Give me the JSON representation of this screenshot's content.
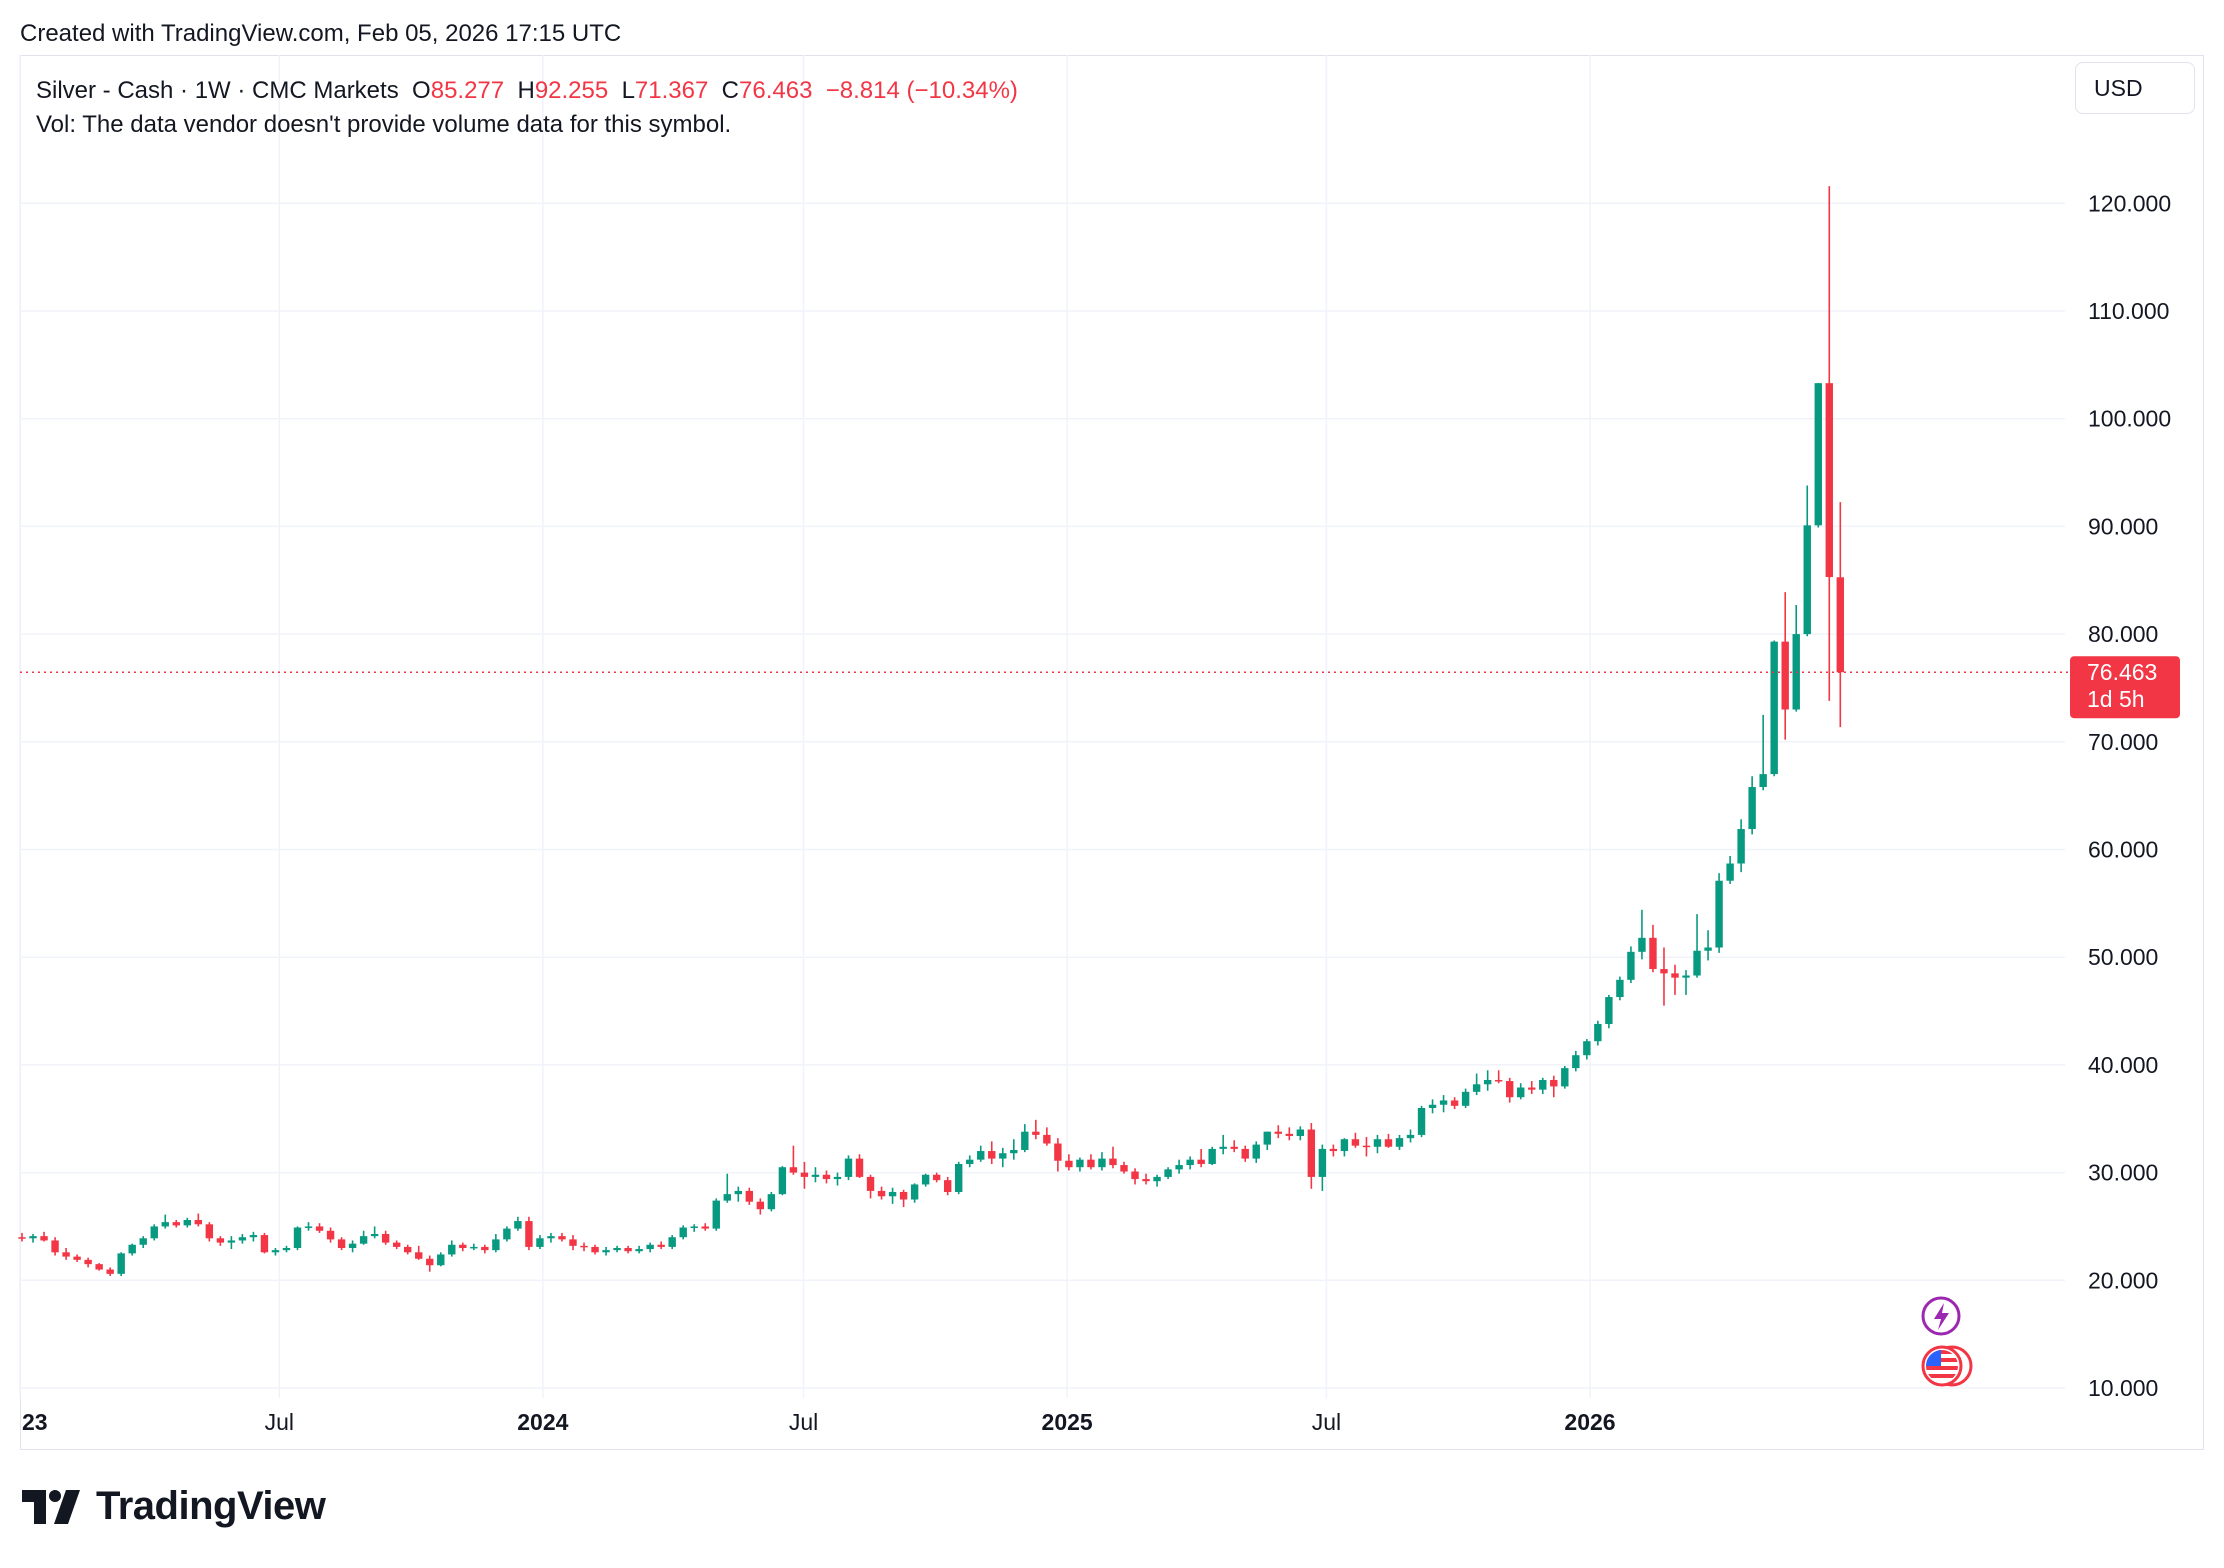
{
  "header": {
    "created_text": "Created with TradingView.com, Feb 05, 2026 17:15 UTC"
  },
  "legend": {
    "symbol": "Silver - Cash · 1W · CMC Markets",
    "open_label": "O",
    "open_value": "85.277",
    "high_label": "H",
    "high_value": "92.255",
    "low_label": "L",
    "low_value": "71.367",
    "close_label": "C",
    "close_value": "76.463",
    "change": "−8.814 (−10.34%)",
    "volume_note": "Vol: The data vendor doesn't provide volume data for this symbol."
  },
  "currency_button": "USD",
  "price_tag": {
    "price": "76.463",
    "countdown": "1d 5h"
  },
  "brand": {
    "name": "TradingView"
  },
  "icons": [
    "lightning-event-icon",
    "us-flag-event-icon"
  ],
  "colors": {
    "up": "#089981",
    "down": "#f23645",
    "grid": "#f0f3fa",
    "text": "#131722"
  },
  "chart_data": {
    "type": "candlestick",
    "interval": "1W",
    "y_ticks": [
      "10.000",
      "20.000",
      "30.000",
      "40.000",
      "50.000",
      "60.000",
      "70.000",
      "80.000",
      "90.000",
      "100.000",
      "110.000",
      "120.000"
    ],
    "ylim": [
      10,
      123
    ],
    "x_ticks": [
      {
        "label": "23",
        "date": "2023-01-01",
        "bold": true
      },
      {
        "label": "Jul",
        "date": "2023-07-01",
        "bold": false
      },
      {
        "label": "2024",
        "date": "2024-01-01",
        "bold": true
      },
      {
        "label": "Jul",
        "date": "2024-07-01",
        "bold": false
      },
      {
        "label": "2025",
        "date": "2025-01-01",
        "bold": true
      },
      {
        "label": "Jul",
        "date": "2025-07-01",
        "bold": false
      },
      {
        "label": "2026",
        "date": "2026-01-01",
        "bold": true
      }
    ],
    "last_price": 76.463,
    "candles": [
      [
        24.0,
        24.4,
        23.6,
        23.9
      ],
      [
        23.9,
        24.3,
        23.5,
        24.1
      ],
      [
        24.1,
        24.5,
        23.6,
        23.7
      ],
      [
        23.7,
        24.0,
        22.3,
        22.6
      ],
      [
        22.6,
        23.0,
        21.9,
        22.2
      ],
      [
        22.2,
        22.4,
        21.7,
        21.9
      ],
      [
        21.9,
        22.1,
        21.2,
        21.5
      ],
      [
        21.5,
        21.6,
        20.9,
        21.0
      ],
      [
        21.0,
        21.2,
        20.4,
        20.6
      ],
      [
        20.6,
        22.6,
        20.4,
        22.5
      ],
      [
        22.5,
        23.4,
        22.3,
        23.3
      ],
      [
        23.3,
        24.1,
        23.0,
        23.9
      ],
      [
        23.9,
        25.2,
        23.7,
        25.0
      ],
      [
        25.0,
        26.1,
        24.8,
        25.4
      ],
      [
        25.4,
        25.6,
        24.9,
        25.1
      ],
      [
        25.1,
        25.8,
        24.9,
        25.6
      ],
      [
        25.6,
        26.2,
        25.0,
        25.2
      ],
      [
        25.2,
        25.4,
        23.6,
        23.9
      ],
      [
        23.9,
        24.1,
        23.2,
        23.5
      ],
      [
        23.5,
        24.1,
        22.9,
        23.7
      ],
      [
        23.7,
        24.3,
        23.4,
        24.0
      ],
      [
        24.0,
        24.5,
        23.6,
        24.2
      ],
      [
        24.2,
        24.4,
        22.5,
        22.6
      ],
      [
        22.6,
        23.0,
        22.3,
        22.8
      ],
      [
        22.8,
        23.2,
        22.6,
        23.0
      ],
      [
        23.0,
        25.0,
        22.8,
        24.9
      ],
      [
        24.9,
        25.4,
        24.6,
        25.0
      ],
      [
        25.0,
        25.3,
        24.4,
        24.6
      ],
      [
        24.6,
        24.9,
        23.5,
        23.8
      ],
      [
        23.8,
        24.0,
        22.8,
        23.0
      ],
      [
        23.0,
        23.7,
        22.6,
        23.4
      ],
      [
        23.4,
        24.6,
        23.3,
        24.1
      ],
      [
        24.1,
        25.0,
        23.9,
        24.3
      ],
      [
        24.3,
        24.6,
        23.3,
        23.5
      ],
      [
        23.5,
        23.7,
        22.9,
        23.1
      ],
      [
        23.1,
        23.3,
        22.4,
        22.6
      ],
      [
        22.6,
        23.2,
        21.9,
        22.0
      ],
      [
        22.0,
        22.3,
        20.8,
        21.4
      ],
      [
        21.4,
        22.6,
        21.3,
        22.4
      ],
      [
        22.4,
        23.7,
        22.2,
        23.3
      ],
      [
        23.3,
        23.5,
        22.7,
        23.0
      ],
      [
        23.0,
        23.4,
        22.8,
        23.1
      ],
      [
        23.1,
        23.3,
        22.5,
        22.8
      ],
      [
        22.8,
        24.3,
        22.6,
        23.8
      ],
      [
        23.8,
        25.0,
        23.6,
        24.8
      ],
      [
        24.8,
        25.9,
        24.6,
        25.5
      ],
      [
        25.5,
        25.9,
        22.8,
        23.1
      ],
      [
        23.1,
        24.2,
        22.9,
        23.9
      ],
      [
        23.9,
        24.4,
        23.5,
        24.1
      ],
      [
        24.1,
        24.4,
        23.6,
        23.8
      ],
      [
        23.8,
        24.2,
        22.8,
        23.2
      ],
      [
        23.2,
        23.5,
        22.7,
        23.1
      ],
      [
        23.1,
        23.3,
        22.4,
        22.6
      ],
      [
        22.6,
        23.1,
        22.3,
        22.8
      ],
      [
        22.8,
        23.2,
        22.6,
        23.0
      ],
      [
        23.0,
        23.2,
        22.5,
        22.7
      ],
      [
        22.7,
        23.2,
        22.5,
        22.9
      ],
      [
        22.9,
        23.5,
        22.6,
        23.3
      ],
      [
        23.3,
        23.6,
        22.9,
        23.1
      ],
      [
        23.1,
        24.2,
        22.9,
        24.0
      ],
      [
        24.0,
        25.1,
        23.8,
        24.9
      ],
      [
        24.9,
        25.2,
        24.5,
        25.0
      ],
      [
        25.0,
        25.3,
        24.6,
        24.8
      ],
      [
        24.8,
        27.6,
        24.6,
        27.4
      ],
      [
        27.4,
        29.9,
        27.2,
        28.0
      ],
      [
        28.0,
        28.7,
        27.3,
        28.3
      ],
      [
        28.3,
        28.6,
        27.0,
        27.3
      ],
      [
        27.3,
        27.6,
        26.1,
        26.6
      ],
      [
        26.6,
        28.2,
        26.4,
        28.0
      ],
      [
        28.0,
        30.6,
        27.9,
        30.5
      ],
      [
        30.5,
        32.5,
        29.8,
        30.0
      ],
      [
        30.0,
        31.0,
        28.5,
        29.6
      ],
      [
        29.6,
        30.5,
        29.1,
        29.8
      ],
      [
        29.8,
        30.2,
        29.0,
        29.4
      ],
      [
        29.4,
        30.0,
        28.8,
        29.6
      ],
      [
        29.6,
        31.6,
        29.3,
        31.3
      ],
      [
        31.3,
        31.7,
        29.5,
        29.6
      ],
      [
        29.6,
        29.8,
        27.6,
        28.3
      ],
      [
        28.3,
        28.7,
        27.5,
        27.8
      ],
      [
        27.8,
        28.6,
        27.1,
        28.2
      ],
      [
        28.2,
        28.4,
        26.8,
        27.5
      ],
      [
        27.5,
        29.0,
        27.2,
        28.9
      ],
      [
        28.9,
        29.9,
        28.7,
        29.8
      ],
      [
        29.8,
        30.0,
        29.1,
        29.3
      ],
      [
        29.3,
        29.6,
        27.9,
        28.2
      ],
      [
        28.2,
        31.0,
        28.0,
        30.8
      ],
      [
        30.8,
        31.6,
        30.5,
        31.2
      ],
      [
        31.2,
        32.5,
        31.0,
        32.0
      ],
      [
        32.0,
        32.9,
        30.8,
        31.3
      ],
      [
        31.3,
        32.3,
        30.5,
        31.8
      ],
      [
        31.8,
        33.1,
        31.2,
        32.1
      ],
      [
        32.1,
        34.5,
        31.9,
        33.8
      ],
      [
        33.8,
        34.9,
        33.1,
        33.5
      ],
      [
        33.5,
        34.2,
        32.5,
        32.7
      ],
      [
        32.7,
        33.2,
        30.1,
        31.1
      ],
      [
        31.1,
        31.7,
        30.2,
        30.5
      ],
      [
        30.5,
        31.4,
        30.1,
        31.2
      ],
      [
        31.2,
        31.7,
        30.3,
        30.5
      ],
      [
        30.5,
        31.9,
        30.2,
        31.3
      ],
      [
        31.3,
        32.4,
        30.4,
        30.7
      ],
      [
        30.7,
        31.0,
        29.9,
        30.1
      ],
      [
        30.1,
        30.4,
        28.9,
        29.4
      ],
      [
        29.4,
        29.9,
        28.9,
        29.2
      ],
      [
        29.2,
        29.8,
        28.7,
        29.6
      ],
      [
        29.6,
        30.5,
        29.4,
        30.3
      ],
      [
        30.3,
        31.2,
        29.9,
        30.7
      ],
      [
        30.7,
        31.5,
        30.3,
        31.2
      ],
      [
        31.2,
        32.2,
        30.5,
        30.8
      ],
      [
        30.8,
        32.4,
        30.7,
        32.2
      ],
      [
        32.2,
        33.5,
        31.7,
        32.4
      ],
      [
        32.4,
        33.0,
        31.9,
        32.2
      ],
      [
        32.2,
        32.5,
        31.0,
        31.3
      ],
      [
        31.3,
        32.9,
        30.9,
        32.6
      ],
      [
        32.6,
        33.8,
        32.1,
        33.8
      ],
      [
        33.8,
        34.4,
        33.2,
        33.6
      ],
      [
        33.6,
        34.2,
        33.0,
        33.4
      ],
      [
        33.4,
        34.3,
        33.0,
        34.0
      ],
      [
        34.0,
        34.6,
        28.5,
        29.6
      ],
      [
        29.6,
        32.6,
        28.3,
        32.2
      ],
      [
        32.2,
        32.6,
        31.5,
        32.0
      ],
      [
        32.0,
        33.2,
        31.5,
        33.1
      ],
      [
        33.1,
        33.7,
        32.3,
        32.5
      ],
      [
        32.5,
        33.3,
        31.5,
        32.4
      ],
      [
        32.4,
        33.5,
        31.8,
        33.1
      ],
      [
        33.1,
        33.6,
        32.3,
        32.4
      ],
      [
        32.4,
        33.5,
        32.1,
        33.2
      ],
      [
        33.2,
        34.0,
        32.8,
        33.5
      ],
      [
        33.5,
        36.2,
        33.3,
        36.0
      ],
      [
        36.0,
        36.8,
        35.5,
        36.3
      ],
      [
        36.3,
        37.2,
        35.6,
        36.7
      ],
      [
        36.7,
        37.0,
        35.9,
        36.2
      ],
      [
        36.2,
        37.8,
        36.0,
        37.5
      ],
      [
        37.5,
        39.2,
        37.2,
        38.2
      ],
      [
        38.2,
        39.5,
        37.6,
        38.6
      ],
      [
        38.6,
        39.5,
        38.3,
        38.5
      ],
      [
        38.5,
        38.8,
        36.5,
        37.0
      ],
      [
        37.0,
        38.3,
        36.8,
        37.9
      ],
      [
        37.9,
        38.5,
        37.3,
        37.7
      ],
      [
        37.7,
        38.8,
        37.3,
        38.6
      ],
      [
        38.6,
        39.0,
        37.0,
        38.0
      ],
      [
        38.0,
        39.9,
        37.8,
        39.7
      ],
      [
        39.7,
        41.3,
        39.4,
        40.9
      ],
      [
        40.9,
        42.4,
        40.5,
        42.2
      ],
      [
        42.2,
        44.1,
        41.8,
        43.8
      ],
      [
        43.8,
        46.5,
        43.4,
        46.3
      ],
      [
        46.3,
        48.2,
        46.0,
        47.9
      ],
      [
        47.9,
        51.0,
        47.6,
        50.5
      ],
      [
        50.5,
        54.4,
        49.8,
        51.8
      ],
      [
        51.8,
        53.0,
        48.6,
        48.9
      ],
      [
        48.9,
        50.9,
        45.5,
        48.5
      ],
      [
        48.5,
        49.3,
        46.5,
        48.1
      ],
      [
        48.1,
        48.8,
        46.5,
        48.3
      ],
      [
        48.3,
        54.0,
        48.1,
        50.6
      ],
      [
        50.6,
        52.5,
        49.7,
        50.9
      ],
      [
        50.9,
        57.8,
        50.4,
        57.1
      ],
      [
        57.1,
        59.4,
        56.8,
        58.7
      ],
      [
        58.7,
        62.8,
        57.9,
        61.9
      ],
      [
        61.9,
        66.8,
        61.4,
        65.8
      ],
      [
        65.8,
        72.5,
        65.5,
        67.0
      ],
      [
        67.0,
        79.4,
        66.8,
        79.3
      ],
      [
        79.3,
        83.9,
        70.2,
        73.0
      ],
      [
        73.0,
        82.7,
        72.8,
        80.0
      ],
      [
        80.0,
        93.8,
        79.8,
        90.1
      ],
      [
        90.1,
        103.3,
        89.9,
        103.3
      ],
      [
        103.3,
        121.6,
        73.8,
        85.3
      ],
      [
        85.277,
        92.255,
        71.367,
        76.463
      ]
    ]
  }
}
